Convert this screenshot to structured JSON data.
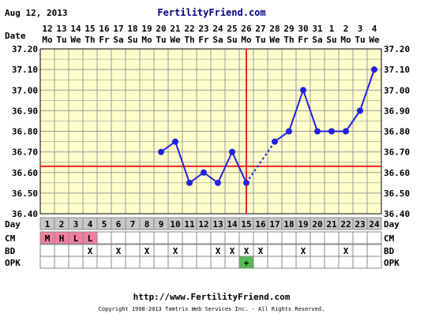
{
  "header": {
    "date": "Aug 12, 2013",
    "site": "FertilityFriend.com"
  },
  "labels": {
    "date": "Date",
    "day": "Day",
    "cm": "CM",
    "bd": "BD",
    "opk": "OPK"
  },
  "footer": {
    "url": "http://www.FertilityFriend.com",
    "copyright": "Copyright 1998-2013 Tamtris Web Services Inc. - All Rights Reserved."
  },
  "colors": {
    "plot_bg": "#ffffcc",
    "grid": "#999999",
    "series": "#2222dd",
    "coverline": "#ee2222",
    "day_row_bg": "#c8c8c8",
    "cm_bg": "#f080a0",
    "opk_bg": "#55bb55"
  },
  "chart_data": {
    "type": "line",
    "title": "",
    "xlabel": "Day",
    "ylabel": "",
    "ylim": [
      36.4,
      37.2
    ],
    "yticks": [
      "36.40",
      "36.50",
      "36.60",
      "36.70",
      "36.80",
      "36.90",
      "37.00",
      "37.10",
      "37.20"
    ],
    "days": [
      1,
      2,
      3,
      4,
      5,
      6,
      7,
      8,
      9,
      10,
      11,
      12,
      13,
      14,
      15,
      16,
      17,
      18,
      19,
      20,
      21,
      22,
      23,
      24
    ],
    "dates": [
      "12",
      "13",
      "14",
      "15",
      "16",
      "17",
      "18",
      "19",
      "20",
      "21",
      "22",
      "23",
      "24",
      "25",
      "26",
      "27",
      "28",
      "29",
      "30",
      "31",
      "1",
      "2",
      "3",
      "4"
    ],
    "weekdays": [
      "Mo",
      "Tu",
      "We",
      "Th",
      "Fr",
      "Sa",
      "Su",
      "Mo",
      "Tu",
      "We",
      "Th",
      "Fr",
      "Sa",
      "Su",
      "Mo",
      "Tu",
      "We",
      "Th",
      "Fr",
      "Sa",
      "Su",
      "Mo",
      "Tu",
      "We"
    ],
    "temperatures": [
      null,
      null,
      null,
      null,
      null,
      null,
      null,
      null,
      36.7,
      36.75,
      36.55,
      36.6,
      36.55,
      36.7,
      36.55,
      null,
      36.75,
      36.8,
      37.0,
      36.8,
      36.8,
      36.8,
      36.9,
      37.1
    ],
    "coverline": 36.63,
    "ovulation_day": 15,
    "cm": [
      "M",
      "H",
      "L",
      "L",
      "",
      "",
      "",
      "",
      "",
      "",
      "",
      "",
      "",
      "",
      "",
      "",
      "",
      "",
      "",
      "",
      "",
      "",
      "",
      ""
    ],
    "bd": [
      "",
      "",
      "",
      "X",
      "",
      "X",
      "",
      "X",
      "",
      "X",
      "",
      "",
      "X",
      "X",
      "X",
      "X",
      "",
      "",
      "X",
      "",
      "",
      "X",
      "",
      ""
    ],
    "opk": [
      "",
      "",
      "",
      "",
      "",
      "",
      "",
      "",
      "",
      "",
      "",
      "",
      "",
      "",
      "+",
      "",
      "",
      "",
      "",
      "",
      "",
      "",
      "",
      ""
    ]
  }
}
